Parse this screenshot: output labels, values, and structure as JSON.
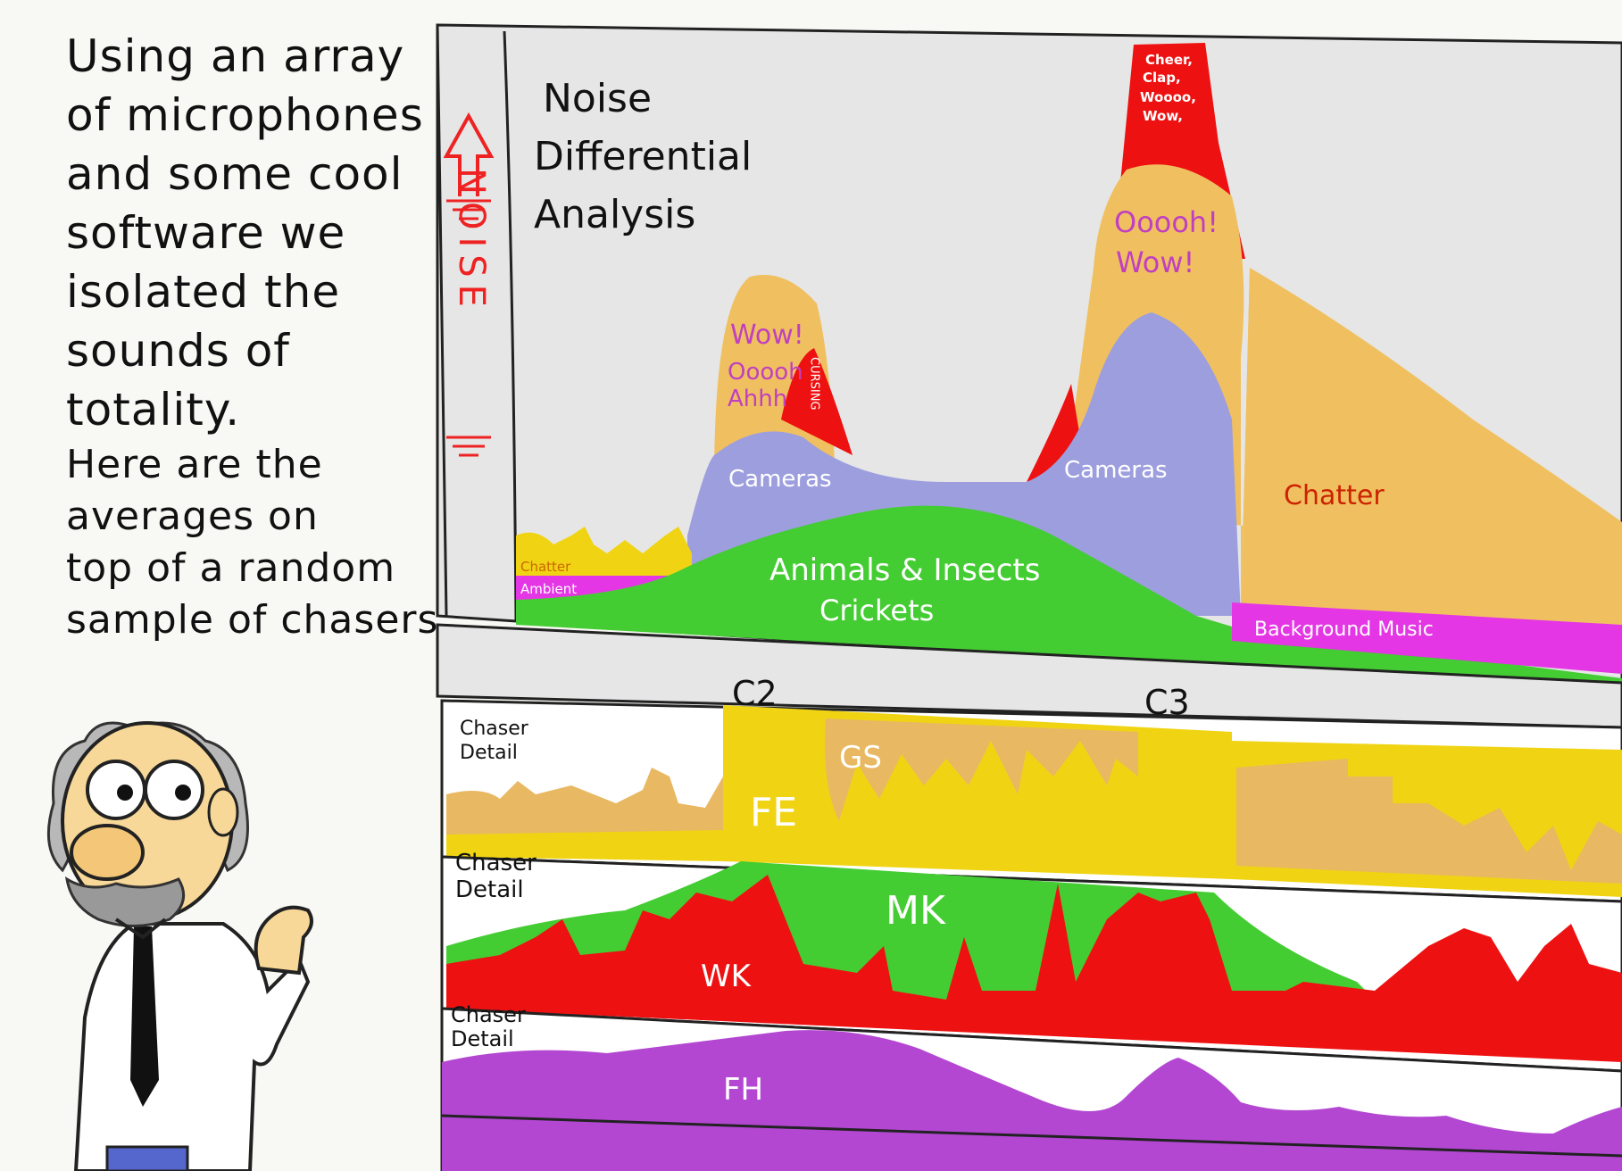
{
  "narration": {
    "lines": [
      "Using an array",
      "of microphones",
      "and some cool",
      "software we",
      "isolated the",
      "sounds of",
      "totality.",
      "Here are the",
      "averages on",
      "top of a random",
      "sample of chasers."
    ]
  },
  "main_panel": {
    "title_lines": [
      "Noise",
      "Differential",
      "Analysis"
    ],
    "y_axis_label": "NOISE",
    "labels": {
      "chatter_small": "Chatter",
      "ambient": "Ambient",
      "wow": "Wow!",
      "oooh": "Ooooh",
      "ahhh": "Ahhh",
      "cursing": "CURSING",
      "cameras_left": "Cameras",
      "cameras_right": "Cameras",
      "animals": "Animals & Insects",
      "crickets": "Crickets",
      "cheer_lines": [
        "Cheer,",
        "Clap,",
        "Woooo,",
        "Wow,"
      ],
      "ooooh_wow_lines": [
        "Ooooh!",
        "Wow!"
      ],
      "chatter_large": "Chatter",
      "background_music": "Background Music"
    }
  },
  "contact_markers": {
    "c2": "C2",
    "c3": "C3"
  },
  "chaser_panels": [
    {
      "label_lines": [
        "Chaser",
        "Detail"
      ],
      "tags": [
        "GS",
        "FE"
      ]
    },
    {
      "label_lines": [
        "Chaser",
        "Detail"
      ],
      "tags": [
        "MK",
        "WK"
      ]
    },
    {
      "label_lines": [
        "Chaser",
        "Detail"
      ],
      "tags": [
        "FH"
      ]
    }
  ],
  "colors": {
    "background": "#f8f8f4",
    "panel_gray": "#e6e6e6",
    "red": "#ee1111",
    "orange": "#f0c060",
    "lavender": "#9d9ede",
    "green": "#44cc33",
    "magenta": "#e436e4",
    "yellow": "#f0d414",
    "tan": "#e8b862",
    "purple": "#b347d2"
  }
}
